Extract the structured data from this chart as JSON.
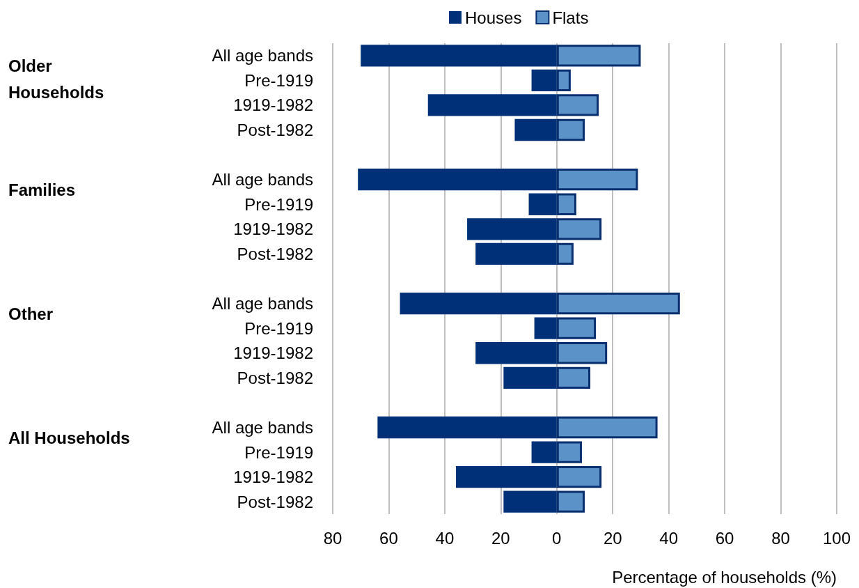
{
  "chart_data": {
    "type": "bar",
    "orientation": "horizontal",
    "xlabel": "Percentage of households (%)",
    "categories": [
      "All age bands",
      "Pre-1919",
      "1919-1982",
      "Post-1982",
      null,
      "All age bands",
      "Pre-1919",
      "1919-1982",
      "Post-1982",
      null,
      "All age bands",
      "Pre-1919",
      "1919-1982",
      "Post-1982",
      null,
      "All age bands",
      "Pre-1919",
      "1919-1982",
      "Post-1982"
    ],
    "series": [
      {
        "name": "Houses",
        "color": "#003078",
        "values": [
          -70,
          -9,
          -46,
          -15,
          null,
          -71,
          -10,
          -32,
          -29,
          null,
          -56,
          -8,
          -29,
          -19,
          null,
          -64,
          -9,
          -36,
          -19
        ]
      },
      {
        "name": "Flats",
        "color": "#5b93c9",
        "values": [
          30,
          5,
          15,
          10,
          null,
          29,
          7,
          16,
          6,
          null,
          44,
          14,
          18,
          12,
          null,
          36,
          9,
          16,
          10
        ]
      }
    ],
    "annotations": [
      "Older Households",
      "Families",
      "Other",
      "All Households"
    ],
    "xlim": [
      -80,
      100
    ],
    "xticks": [
      {
        "value": -80,
        "label": "80"
      },
      {
        "value": -60,
        "label": "60"
      },
      {
        "value": -40,
        "label": "40"
      },
      {
        "value": -20,
        "label": "20"
      },
      0,
      20,
      40,
      60,
      80,
      100
    ],
    "grid": "x",
    "legend": "top"
  }
}
